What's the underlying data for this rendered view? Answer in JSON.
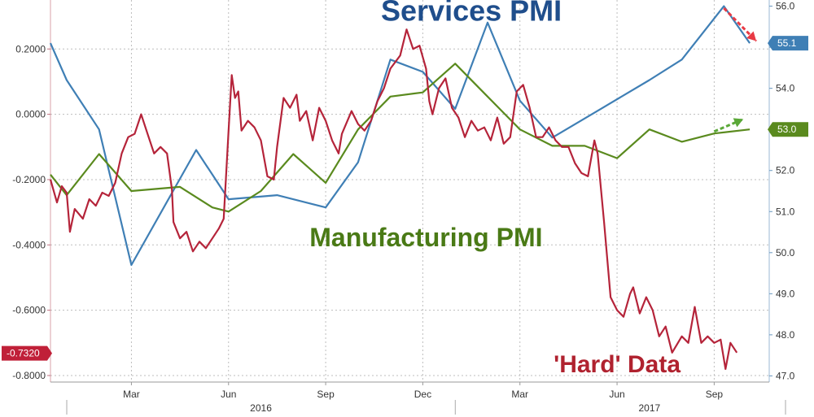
{
  "chart_data": {
    "type": "line",
    "title": "",
    "x_ticks": [
      {
        "x": 2.5,
        "label": "Mar"
      },
      {
        "x": 5.5,
        "label": "Jun"
      },
      {
        "x": 8.5,
        "label": "Sep"
      },
      {
        "x": 11.5,
        "label": "Dec"
      },
      {
        "x": 14.5,
        "label": "Mar"
      },
      {
        "x": 17.5,
        "label": "Jun"
      },
      {
        "x": 20.5,
        "label": "Sep"
      }
    ],
    "year_labels": [
      {
        "x": 6.5,
        "label": "2016"
      },
      {
        "x": 18.5,
        "label": "2017"
      }
    ],
    "year_dividers": [
      0,
      12,
      24
    ],
    "xlim": [
      0,
      22.2
    ],
    "left_axis": {
      "ylim": [
        -0.82,
        0.35
      ],
      "ticks": [
        {
          "v": 0.2,
          "label": "0.2000"
        },
        {
          "v": 0.0,
          "label": "0.0000"
        },
        {
          "v": -0.2,
          "label": "-0.2000"
        },
        {
          "v": -0.4,
          "label": "-0.4000"
        },
        {
          "v": -0.6,
          "label": "-0.6000"
        },
        {
          "v": -0.8,
          "label": "-0.8000"
        }
      ]
    },
    "right_axis": {
      "ylim": [
        46.85,
        56.15
      ],
      "ticks": [
        {
          "v": 56,
          "label": "56.0"
        },
        {
          "v": 55,
          "label": "55.0"
        },
        {
          "v": 54,
          "label": "54.0"
        },
        {
          "v": 53,
          "label": "53.0"
        },
        {
          "v": 52,
          "label": "52.0"
        },
        {
          "v": 51,
          "label": "51.0"
        },
        {
          "v": 50,
          "label": "50.0"
        },
        {
          "v": 49,
          "label": "49.0"
        },
        {
          "v": 48,
          "label": "48.0"
        },
        {
          "v": 47,
          "label": "47.0"
        }
      ]
    },
    "series": [
      {
        "name": "",
        "axis": "right",
        "color": "#3f7fb5",
        "points": [
          [
            0.0,
            55.1
          ],
          [
            0.5,
            54.2
          ],
          [
            1.5,
            53.0
          ],
          [
            2.5,
            49.7
          ],
          [
            4.5,
            52.5
          ],
          [
            5.5,
            51.3
          ],
          [
            7.0,
            51.4
          ],
          [
            8.5,
            51.1
          ],
          [
            9.5,
            52.2
          ],
          [
            10.5,
            54.7
          ],
          [
            11.5,
            54.4
          ],
          [
            12.5,
            53.5
          ],
          [
            13.5,
            55.6
          ],
          [
            14.5,
            53.7
          ],
          [
            15.5,
            52.8
          ],
          [
            17.0,
            53.5
          ],
          [
            18.5,
            54.2
          ],
          [
            19.5,
            54.7
          ],
          [
            20.8,
            56.0
          ],
          [
            21.6,
            55.1
          ]
        ]
      },
      {
        "name": "",
        "axis": "right",
        "color": "#5a8a1e",
        "points": [
          [
            0.0,
            51.9
          ],
          [
            0.5,
            51.4
          ],
          [
            1.5,
            52.4
          ],
          [
            2.5,
            51.5
          ],
          [
            4.0,
            51.6
          ],
          [
            5.0,
            51.1
          ],
          [
            5.5,
            51.0
          ],
          [
            6.5,
            51.5
          ],
          [
            7.5,
            52.4
          ],
          [
            8.5,
            51.7
          ],
          [
            9.5,
            53.0
          ],
          [
            10.5,
            53.8
          ],
          [
            11.5,
            53.9
          ],
          [
            12.5,
            54.6
          ],
          [
            13.5,
            53.8
          ],
          [
            14.5,
            53.0
          ],
          [
            15.5,
            52.6
          ],
          [
            16.5,
            52.6
          ],
          [
            17.5,
            52.3
          ],
          [
            18.5,
            53.0
          ],
          [
            19.5,
            52.7
          ],
          [
            20.5,
            52.9
          ],
          [
            21.6,
            53.0
          ]
        ]
      },
      {
        "name": "",
        "axis": "left",
        "color": "#b5243a",
        "points": [
          [
            0.0,
            -0.2
          ],
          [
            0.2,
            -0.27
          ],
          [
            0.35,
            -0.22
          ],
          [
            0.5,
            -0.24
          ],
          [
            0.6,
            -0.36
          ],
          [
            0.75,
            -0.29
          ],
          [
            1.0,
            -0.32
          ],
          [
            1.2,
            -0.26
          ],
          [
            1.4,
            -0.28
          ],
          [
            1.6,
            -0.24
          ],
          [
            1.8,
            -0.25
          ],
          [
            2.0,
            -0.21
          ],
          [
            2.2,
            -0.12
          ],
          [
            2.4,
            -0.07
          ],
          [
            2.6,
            -0.06
          ],
          [
            2.8,
            0.0
          ],
          [
            3.0,
            -0.06
          ],
          [
            3.2,
            -0.12
          ],
          [
            3.4,
            -0.1
          ],
          [
            3.6,
            -0.12
          ],
          [
            3.75,
            -0.23
          ],
          [
            3.8,
            -0.33
          ],
          [
            4.0,
            -0.38
          ],
          [
            4.2,
            -0.36
          ],
          [
            4.4,
            -0.42
          ],
          [
            4.6,
            -0.39
          ],
          [
            4.8,
            -0.41
          ],
          [
            5.0,
            -0.38
          ],
          [
            5.2,
            -0.35
          ],
          [
            5.35,
            -0.32
          ],
          [
            5.5,
            -0.05
          ],
          [
            5.6,
            0.12
          ],
          [
            5.7,
            0.05
          ],
          [
            5.8,
            0.07
          ],
          [
            5.9,
            -0.05
          ],
          [
            6.1,
            -0.02
          ],
          [
            6.3,
            -0.04
          ],
          [
            6.5,
            -0.08
          ],
          [
            6.7,
            -0.19
          ],
          [
            6.9,
            -0.2
          ],
          [
            7.0,
            -0.1
          ],
          [
            7.2,
            0.05
          ],
          [
            7.4,
            0.02
          ],
          [
            7.6,
            0.06
          ],
          [
            7.7,
            -0.02
          ],
          [
            7.9,
            0.01
          ],
          [
            8.1,
            -0.08
          ],
          [
            8.3,
            0.02
          ],
          [
            8.5,
            -0.02
          ],
          [
            8.7,
            -0.08
          ],
          [
            8.9,
            -0.12
          ],
          [
            9.0,
            -0.06
          ],
          [
            9.3,
            0.01
          ],
          [
            9.5,
            -0.03
          ],
          [
            9.7,
            -0.05
          ],
          [
            9.9,
            -0.02
          ],
          [
            10.1,
            0.04
          ],
          [
            10.3,
            0.08
          ],
          [
            10.5,
            0.14
          ],
          [
            10.8,
            0.18
          ],
          [
            11.0,
            0.26
          ],
          [
            11.2,
            0.2
          ],
          [
            11.4,
            0.21
          ],
          [
            11.6,
            0.14
          ],
          [
            11.7,
            0.04
          ],
          [
            11.8,
            0.0
          ],
          [
            12.0,
            0.08
          ],
          [
            12.2,
            0.11
          ],
          [
            12.4,
            0.02
          ],
          [
            12.6,
            -0.01
          ],
          [
            12.8,
            -0.07
          ],
          [
            13.0,
            -0.02
          ],
          [
            13.2,
            -0.05
          ],
          [
            13.4,
            -0.04
          ],
          [
            13.6,
            -0.08
          ],
          [
            13.8,
            -0.01
          ],
          [
            14.0,
            -0.09
          ],
          [
            14.2,
            -0.07
          ],
          [
            14.4,
            0.07
          ],
          [
            14.6,
            0.09
          ],
          [
            14.8,
            0.02
          ],
          [
            15.0,
            -0.07
          ],
          [
            15.2,
            -0.07
          ],
          [
            15.4,
            -0.04
          ],
          [
            15.6,
            -0.08
          ],
          [
            15.8,
            -0.1
          ],
          [
            16.0,
            -0.1
          ],
          [
            16.2,
            -0.15
          ],
          [
            16.4,
            -0.18
          ],
          [
            16.6,
            -0.19
          ],
          [
            16.8,
            -0.08
          ],
          [
            16.9,
            -0.12
          ],
          [
            17.1,
            -0.33
          ],
          [
            17.3,
            -0.56
          ],
          [
            17.5,
            -0.6
          ],
          [
            17.7,
            -0.62
          ],
          [
            17.9,
            -0.55
          ],
          [
            18.0,
            -0.53
          ],
          [
            18.2,
            -0.61
          ],
          [
            18.4,
            -0.56
          ],
          [
            18.6,
            -0.6
          ],
          [
            18.8,
            -0.68
          ],
          [
            19.0,
            -0.65
          ],
          [
            19.2,
            -0.73
          ],
          [
            19.5,
            -0.68
          ],
          [
            19.7,
            -0.7
          ],
          [
            19.9,
            -0.59
          ],
          [
            20.1,
            -0.7
          ],
          [
            20.3,
            -0.68
          ],
          [
            20.5,
            -0.7
          ],
          [
            20.7,
            -0.69
          ],
          [
            20.85,
            -0.78
          ],
          [
            21.0,
            -0.7
          ],
          [
            21.2,
            -0.73
          ]
        ]
      }
    ],
    "annotations": [
      {
        "text": "Services PMI",
        "x": 13.0,
        "axis": "right",
        "y": 55.65,
        "size": 36,
        "color": "#1f4e8c",
        "anchor": "middle"
      },
      {
        "text": "Manufacturing PMI",
        "x": 11.6,
        "axis": "right",
        "y": 50.15,
        "size": 32,
        "color": "#4a7a16",
        "anchor": "middle"
      },
      {
        "text": "'Hard' Data",
        "x": 17.5,
        "axis": "left",
        "y": -0.79,
        "size": 30,
        "color": "#b0222f",
        "anchor": "middle"
      }
    ],
    "badges": [
      {
        "text": "55.1",
        "axis": "right",
        "value": 55.1,
        "color": "#3f7fb5",
        "side": "right"
      },
      {
        "text": "53.0",
        "axis": "right",
        "value": 53.0,
        "color": "#5a8a1e",
        "side": "right"
      },
      {
        "text": "-0.7320",
        "axis": "left",
        "value": -0.732,
        "color": "#c02038",
        "side": "left"
      }
    ],
    "arrows": [
      {
        "name": "down-arrow",
        "color": "#e83a44",
        "from": [
          20.8,
          55.95
        ],
        "to": [
          21.8,
          55.15
        ],
        "axis": "right"
      },
      {
        "name": "up-arrow",
        "color": "#5aa838",
        "from": [
          20.5,
          52.95
        ],
        "to": [
          21.4,
          53.25
        ],
        "axis": "right"
      }
    ],
    "grid": true
  }
}
